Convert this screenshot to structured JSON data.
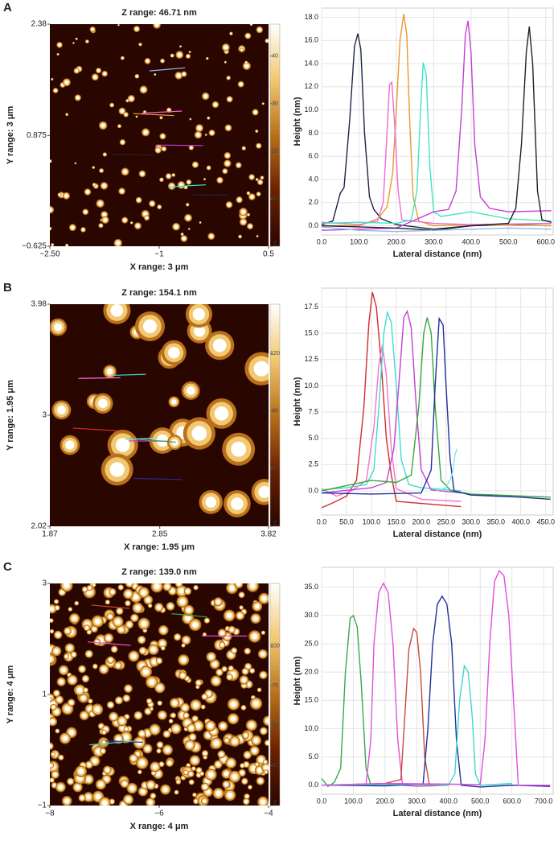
{
  "chart_data": [
    {
      "type": "afm-image",
      "panel": "A",
      "title": "Z range: 46.71 nm",
      "xlabel": "X range: 3 μm",
      "ylabel": "Y range: 3 μm",
      "xlim": [
        -2.5,
        0.5
      ],
      "xticks": [
        {
          "value": -2.5,
          "label": "−2.50"
        },
        {
          "value": -1,
          "label": "−1"
        },
        0.5
      ],
      "ylim": [
        -0.625,
        2.38
      ],
      "yticks": [
        {
          "value": -0.625,
          "label": "−0.625"
        },
        0.875,
        2.38
      ],
      "zlim": [
        0,
        46.71
      ],
      "zticks": [
        0,
        10,
        20,
        30,
        40
      ],
      "colormap": [
        "#2a0600",
        "#6b2100",
        "#b8701c",
        "#f2c870",
        "#ffffff"
      ]
    },
    {
      "type": "line",
      "ylabel": "Height (nm)",
      "xlabel": "Lateral distance (nm)",
      "grid": true,
      "xlim": [
        0,
        620
      ],
      "xticks": [
        {
          "value": 0,
          "label": "0.0"
        },
        {
          "value": 100,
          "label": "100.0"
        },
        {
          "value": 200,
          "label": "200.0"
        },
        {
          "value": 300,
          "label": "300.0"
        },
        {
          "value": 400,
          "label": "400.0"
        },
        {
          "value": 500,
          "label": "500.0"
        },
        {
          "value": 600,
          "label": "600.0"
        }
      ],
      "ylim": [
        -0.8,
        18.8
      ],
      "yticks": [
        {
          "value": 0,
          "label": "0.0"
        },
        {
          "value": 2,
          "label": "2.0"
        },
        {
          "value": 4,
          "label": "4.0"
        },
        {
          "value": 6,
          "label": "6.0"
        },
        {
          "value": 8,
          "label": "8.0"
        },
        {
          "value": 10,
          "label": "10.0"
        },
        {
          "value": 12,
          "label": "12.0"
        },
        {
          "value": 14,
          "label": "14.0"
        },
        {
          "value": 16,
          "label": "16.0"
        },
        {
          "value": 18,
          "label": "18.0"
        }
      ],
      "series": [
        {
          "color": "#1c2541",
          "x": [
            0,
            30,
            50,
            60,
            75,
            88,
            97,
            105,
            115,
            128,
            140,
            160,
            200,
            300,
            400,
            500,
            615
          ],
          "values": [
            0.1,
            0.4,
            2.8,
            3.3,
            9,
            15.5,
            16.6,
            15.2,
            8,
            2.5,
            1.4,
            0.6,
            0.1,
            -0.3,
            0,
            0.1,
            0.2
          ]
        },
        {
          "color": "#e69a2e",
          "x": [
            0,
            100,
            150,
            175,
            190,
            200,
            210,
            220,
            228,
            236,
            245,
            260,
            300,
            400,
            615
          ],
          "values": [
            0,
            0,
            0.6,
            1.6,
            4.5,
            10,
            16,
            18.3,
            16.5,
            9,
            2.5,
            0.4,
            0,
            0.1,
            0
          ]
        },
        {
          "color": "#f06ad8",
          "x": [
            0,
            100,
            150,
            165,
            175,
            182,
            188,
            195,
            205,
            215,
            300,
            400,
            615
          ],
          "values": [
            0.3,
            0.1,
            0.4,
            2,
            8,
            12.2,
            12.4,
            9,
            3,
            0.5,
            0.2,
            0.1,
            0.2
          ]
        },
        {
          "color": "#3ee6c2",
          "x": [
            0,
            100,
            200,
            240,
            255,
            265,
            272,
            280,
            290,
            300,
            320,
            400,
            500,
            615
          ],
          "values": [
            0.2,
            0.3,
            0.2,
            0.5,
            3,
            10,
            14.1,
            13,
            5,
            1.2,
            0.8,
            1.2,
            0.6,
            0.4
          ]
        },
        {
          "color": "#c43fd6",
          "x": [
            0,
            100,
            200,
            300,
            340,
            360,
            375,
            385,
            392,
            400,
            410,
            425,
            450,
            500,
            615
          ],
          "values": [
            -0.4,
            -0.3,
            -0.2,
            1.2,
            1.4,
            3,
            10,
            16.5,
            17.7,
            15,
            7,
            2.5,
            1.5,
            1.2,
            1.3
          ]
        },
        {
          "color": "#222222",
          "x": [
            0,
            100,
            200,
            300,
            400,
            500,
            520,
            535,
            548,
            556,
            565,
            578,
            590,
            615
          ],
          "values": [
            0,
            -0.1,
            -0.2,
            -0.4,
            0,
            0.2,
            1.5,
            7,
            15,
            17.2,
            14,
            3,
            0.5,
            0.3
          ]
        },
        {
          "color": "#8fb8f0",
          "x": [
            0,
            100,
            200,
            300,
            400,
            500,
            615
          ],
          "values": [
            -0.1,
            -0.4,
            -0.5,
            -0.4,
            -0.3,
            -0.2,
            -0.3
          ]
        }
      ]
    },
    {
      "type": "afm-image",
      "panel": "B",
      "title": "Z range: 154.1 nm",
      "xlabel": "X range: 1.95 μm",
      "ylabel": "Y range: 1.95 μm",
      "xlim": [
        1.87,
        3.82
      ],
      "xticks": [
        1.87,
        2.85,
        3.82
      ],
      "ylim": [
        2.02,
        3.98
      ],
      "yticks": [
        2.02,
        3,
        3.98
      ],
      "zlim": [
        0,
        154.1
      ],
      "zticks": [
        0,
        40,
        80,
        120
      ],
      "colormap": [
        "#2a0600",
        "#6b2100",
        "#b8701c",
        "#f2c870",
        "#ffffff"
      ]
    },
    {
      "type": "line",
      "ylabel": "Height (nm)",
      "xlabel": "Lateral distance (nm)",
      "grid": true,
      "xlim": [
        0,
        465
      ],
      "xticks": [
        {
          "value": 0,
          "label": "0.0"
        },
        {
          "value": 50,
          "label": "50.0"
        },
        {
          "value": 100,
          "label": "100.0"
        },
        {
          "value": 150,
          "label": "150.0"
        },
        {
          "value": 200,
          "label": "200.0"
        },
        {
          "value": 250,
          "label": "250.0"
        },
        {
          "value": 300,
          "label": "300.0"
        },
        {
          "value": 350,
          "label": "350.0"
        },
        {
          "value": 400,
          "label": "400.0"
        },
        {
          "value": 450,
          "label": "450.0"
        }
      ],
      "ylim": [
        -2.3,
        19.3
      ],
      "yticks": [
        {
          "value": 0,
          "label": "0.0"
        },
        {
          "value": 2.5,
          "label": "2.5"
        },
        {
          "value": 5,
          "label": "5.0"
        },
        {
          "value": 7.5,
          "label": "7.5"
        },
        {
          "value": 10,
          "label": "10.0"
        },
        {
          "value": 12.5,
          "label": "12.5"
        },
        {
          "value": 15,
          "label": "15.0"
        },
        17.5
      ],
      "series": [
        {
          "color": "#d42b2b",
          "x": [
            0,
            20,
            50,
            70,
            85,
            95,
            102,
            110,
            120,
            130,
            140,
            150,
            200,
            280
          ],
          "values": [
            -1.6,
            -1.2,
            -0.5,
            1,
            8,
            16,
            18.9,
            17.5,
            12,
            5,
            1.5,
            -1,
            -1.2,
            -1.5
          ]
        },
        {
          "color": "#f472d0",
          "x": [
            0,
            30,
            60,
            90,
            105,
            115,
            122,
            130,
            140,
            150,
            200,
            280
          ],
          "values": [
            0.2,
            -0.5,
            0,
            1,
            6,
            12,
            13.9,
            11,
            4,
            0.2,
            -0.8,
            -1
          ]
        },
        {
          "color": "#3fdcd0",
          "x": [
            0,
            50,
            90,
            105,
            115,
            125,
            132,
            140,
            150,
            160,
            175,
            200,
            280
          ],
          "values": [
            0.1,
            0.3,
            0.6,
            2,
            8,
            15,
            17,
            16,
            10,
            3,
            0.6,
            0.3,
            0
          ]
        },
        {
          "color": "#c43fd6",
          "x": [
            0,
            100,
            130,
            145,
            158,
            165,
            172,
            180,
            190,
            200,
            220,
            280
          ],
          "values": [
            -0.2,
            0.3,
            0.8,
            4,
            12,
            16.5,
            17.1,
            15.5,
            8,
            2,
            0.1,
            -0.2
          ]
        },
        {
          "color": "#35a83a",
          "x": [
            0,
            50,
            100,
            150,
            180,
            195,
            205,
            212,
            220,
            228,
            240,
            260,
            300,
            460
          ],
          "values": [
            0,
            0.5,
            1,
            0.8,
            1.5,
            8,
            15,
            16.5,
            15,
            8,
            1,
            0,
            -0.3,
            -0.6
          ]
        },
        {
          "color": "#23309a",
          "x": [
            0,
            100,
            200,
            220,
            228,
            236,
            244,
            250,
            258,
            266,
            300,
            350,
            400,
            460
          ],
          "values": [
            -0.2,
            -0.3,
            -0.2,
            2,
            10,
            16.4,
            15.8,
            10,
            3,
            0,
            -0.4,
            -0.5,
            -0.6,
            -0.8
          ]
        },
        {
          "color": "#7ee8e8",
          "x": [
            230,
            250,
            262,
            268,
            272
          ],
          "values": [
            0,
            0.3,
            1.5,
            3.5,
            4
          ]
        }
      ]
    },
    {
      "type": "afm-image",
      "panel": "C",
      "title": "Z range: 139.0 nm",
      "xlabel": "X range: 4 μm",
      "ylabel": "Y range: 4 μm",
      "xlim": [
        -8,
        -4
      ],
      "xticks": [
        {
          "value": -8,
          "label": "−8"
        },
        {
          "value": -6,
          "label": "−6"
        },
        {
          "value": -4,
          "label": "−4"
        }
      ],
      "ylim": [
        -1,
        3
      ],
      "yticks": [
        {
          "value": -1,
          "label": "−1"
        },
        1,
        3
      ],
      "zlim": [
        0,
        139
      ],
      "zticks": [
        0,
        25,
        50,
        75,
        100
      ],
      "colormap": [
        "#2a0600",
        "#6b2100",
        "#b8701c",
        "#f2c870",
        "#ffffff"
      ]
    },
    {
      "type": "line",
      "ylabel": "Height (nm)",
      "xlabel": "Lateral distance (nm)",
      "grid": true,
      "xlim": [
        0,
        730
      ],
      "xticks": [
        {
          "value": 0,
          "label": "0.0"
        },
        {
          "value": 100,
          "label": "100.0"
        },
        {
          "value": 200,
          "label": "200.0"
        },
        {
          "value": 300,
          "label": "300.0"
        },
        {
          "value": 400,
          "label": "400.0"
        },
        {
          "value": 500,
          "label": "500.0"
        },
        {
          "value": 600,
          "label": "600.0"
        },
        {
          "value": 700,
          "label": "700.0"
        }
      ],
      "ylim": [
        -1.6,
        38.5
      ],
      "yticks": [
        {
          "value": 0,
          "label": "0.0"
        },
        {
          "value": 5,
          "label": "5.0"
        },
        {
          "value": 10,
          "label": "10.0"
        },
        {
          "value": 15,
          "label": "15.0"
        },
        {
          "value": 20,
          "label": "20.0"
        },
        {
          "value": 25,
          "label": "25.0"
        },
        {
          "value": 30,
          "label": "30.0"
        },
        {
          "value": 35,
          "label": "35.0"
        }
      ],
      "series": [
        {
          "color": "#3ba84a",
          "x": [
            0,
            20,
            40,
            60,
            75,
            90,
            100,
            112,
            125,
            140,
            155,
            200,
            300,
            400
          ],
          "values": [
            1.2,
            -0.2,
            0.5,
            3,
            20,
            29.5,
            30,
            28,
            18,
            3,
            0,
            0.2,
            0.1,
            0
          ]
        },
        {
          "color": "#e052d8",
          "x": [
            0,
            100,
            140,
            155,
            165,
            180,
            195,
            210,
            225,
            240,
            255,
            300,
            400
          ],
          "values": [
            0,
            0,
            0.1,
            8,
            25,
            34,
            35.7,
            34,
            25,
            8,
            0,
            -0.2,
            0
          ]
        },
        {
          "color": "#c84b3a",
          "x": [
            0,
            200,
            250,
            262,
            275,
            290,
            300,
            312,
            325,
            340,
            400
          ],
          "values": [
            0,
            0.3,
            1,
            12,
            24,
            27.7,
            27,
            20,
            5,
            0,
            0
          ]
        },
        {
          "color": "#23309a",
          "x": [
            0,
            200,
            320,
            335,
            350,
            365,
            380,
            395,
            410,
            425,
            440,
            500,
            600,
            720
          ],
          "values": [
            0,
            -0.1,
            0.2,
            10,
            25,
            32,
            33.4,
            32,
            25,
            8,
            0,
            -0.3,
            0,
            -0.2
          ]
        },
        {
          "color": "#3fd8c8",
          "x": [
            0,
            300,
            400,
            420,
            435,
            450,
            462,
            475,
            485,
            500,
            600
          ],
          "values": [
            0,
            0.2,
            0,
            2,
            15,
            21.1,
            20,
            12,
            2,
            0,
            0.3
          ]
        },
        {
          "color": "#e04ee0",
          "x": [
            0,
            200,
            400,
            500,
            515,
            530,
            545,
            560,
            575,
            590,
            605,
            620,
            660,
            720
          ],
          "values": [
            0,
            0.3,
            0.2,
            0.1,
            8,
            25,
            36,
            37.9,
            37,
            30,
            15,
            0,
            0,
            0
          ]
        }
      ]
    }
  ]
}
